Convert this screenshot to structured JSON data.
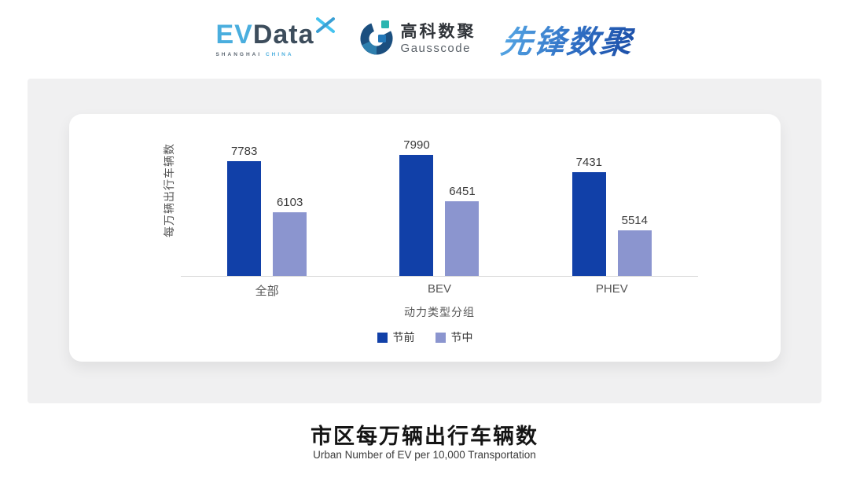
{
  "header": {
    "evdata": {
      "ev": "EV",
      "data": "Data",
      "sub_left": "SHANGHAI",
      "sub_right": "CHINA"
    },
    "gausscode": {
      "cn": "高科数聚",
      "en": "Gausscode"
    },
    "pioneer": "先锋数聚"
  },
  "chart_data": {
    "type": "bar",
    "categories": [
      "全部",
      "BEV",
      "PHEV"
    ],
    "series": [
      {
        "name": "节前",
        "color": "#1140a8",
        "values": [
          7783,
          7990,
          7431
        ]
      },
      {
        "name": "节中",
        "color": "#8b95cf",
        "values": [
          6103,
          6451,
          5514
        ]
      }
    ],
    "xlabel": "动力类型分组",
    "ylabel": "每万辆出行车辆数",
    "ylim": [
      4000,
      8200
    ],
    "grid": false,
    "legend_position": "bottom"
  },
  "footer": {
    "title": "市区每万辆出行车辆数",
    "subtitle": "Urban Number of EV per 10,000 Transportation"
  },
  "colors": {
    "pre_holiday": "#1140a8",
    "mid_holiday": "#8b95cf",
    "panel_bg": "#f0f0f1",
    "card_bg": "#ffffff",
    "axis_line": "#d9d9d9",
    "evdata_blue": "#4aaede",
    "evdata_dark": "#3d4d5c",
    "gauss_navy": "#1b4f7f",
    "gauss_teal": "#2ab5b0",
    "pioneer_blue": "#2b6bc0"
  }
}
